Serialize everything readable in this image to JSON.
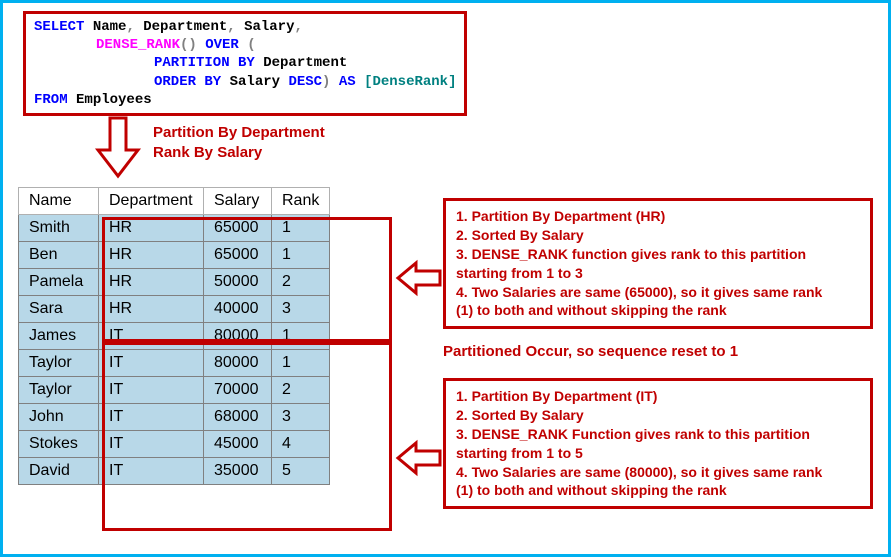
{
  "sql": {
    "line1": {
      "select": "SELECT",
      "cols": " Name",
      "comma1": ", ",
      "dept": "Department",
      "comma2": ", ",
      "sal": "Salary",
      "comma3": ","
    },
    "line2": {
      "func": "DENSE_RANK",
      "paren": "()",
      "over": " OVER ",
      "open": "("
    },
    "line3": {
      "part": "PARTITION BY",
      "col": " Department"
    },
    "line4": {
      "ord": "ORDER BY",
      "col": " Salary ",
      "desc": "DESC",
      "close": ")",
      "as": " AS ",
      "alias": "[DenseRank]"
    },
    "line5": {
      "from": "FROM",
      "tbl": " Employees"
    }
  },
  "arrow_label": {
    "l1": "Partition By Department",
    "l2": "Rank By Salary"
  },
  "table": {
    "headers": [
      "Name",
      "Department",
      "Salary",
      "Rank"
    ],
    "rows": [
      [
        "Smith",
        "HR",
        "65000",
        "1"
      ],
      [
        "Ben",
        "HR",
        "65000",
        "1"
      ],
      [
        "Pamela",
        "HR",
        "50000",
        "2"
      ],
      [
        "Sara",
        "HR",
        "40000",
        "3"
      ],
      [
        "James",
        "IT",
        "80000",
        "1"
      ],
      [
        "Taylor",
        "IT",
        "80000",
        "1"
      ],
      [
        "Taylor",
        "IT",
        "70000",
        "2"
      ],
      [
        "John",
        "IT",
        "68000",
        "3"
      ],
      [
        "Stokes",
        "IT",
        "45000",
        "4"
      ],
      [
        "David",
        "IT",
        "35000",
        "5"
      ]
    ]
  },
  "callout1": {
    "l1": "1. Partition By Department (HR)",
    "l2": "2. Sorted By Salary",
    "l3": "3. DENSE_RANK function gives rank to this partition",
    "l4": "starting from 1 to 3",
    "l5": "4. Two Salaries are same (65000), so it gives same rank",
    "l6": "(1) to both and without skipping the rank"
  },
  "note": "Partitioned Occur, so sequence reset to 1",
  "callout2": {
    "l1": "1. Partition By Department (IT)",
    "l2": "2. Sorted By Salary",
    "l3": "3. DENSE_RANK Function gives rank to this partition",
    "l4": "starting from 1 to 5",
    "l5": "4. Two Salaries are same (80000), so it gives same rank",
    "l6": "(1) to both and without skipping the rank"
  },
  "colors": {
    "border_main": "#00b0f0",
    "red": "#c00000",
    "cell_bg": "#b8d8e8"
  }
}
